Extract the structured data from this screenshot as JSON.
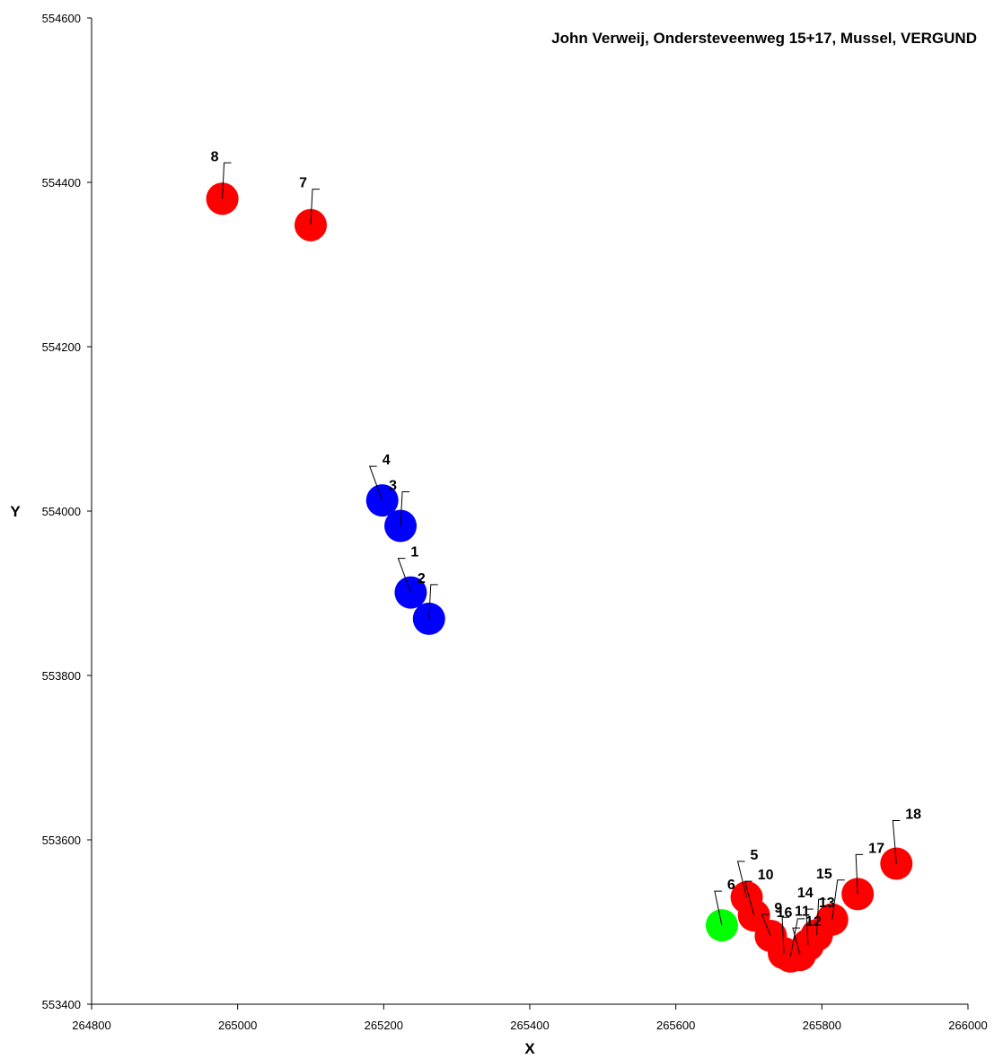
{
  "chart_data": {
    "type": "scatter",
    "title": "John Verweij, Ondersteveenweg 15+17, Mussel, VERGUND",
    "xlabel": "X",
    "ylabel": "Y",
    "xlim": [
      264800,
      266000
    ],
    "ylim": [
      553400,
      554600
    ],
    "xticks": [
      264800,
      265000,
      265200,
      265400,
      265600,
      265800,
      266000
    ],
    "yticks": [
      553400,
      553600,
      553800,
      554000,
      554200,
      554400,
      554600
    ],
    "grid": false,
    "colors": {
      "red": "#ff0000",
      "blue": "#0000ff",
      "green": "#00ff00"
    },
    "points": [
      {
        "label": "1",
        "x": 265237,
        "y": 553901,
        "color": "blue"
      },
      {
        "label": "2",
        "x": 265262,
        "y": 553869,
        "color": "blue"
      },
      {
        "label": "3",
        "x": 265223,
        "y": 553982,
        "color": "blue"
      },
      {
        "label": "4",
        "x": 265198,
        "y": 554013,
        "color": "blue"
      },
      {
        "label": "5",
        "x": 265697,
        "y": 553530,
        "color": "red"
      },
      {
        "label": "6",
        "x": 265663,
        "y": 553496,
        "color": "green"
      },
      {
        "label": "7",
        "x": 265100,
        "y": 554348,
        "color": "red"
      },
      {
        "label": "8",
        "x": 264979,
        "y": 554380,
        "color": "red"
      },
      {
        "label": "9",
        "x": 265730,
        "y": 553483,
        "color": "red"
      },
      {
        "label": "10",
        "x": 265707,
        "y": 553508,
        "color": "red"
      },
      {
        "label": "11",
        "x": 265748,
        "y": 553462,
        "color": "red"
      },
      {
        "label": "12",
        "x": 265770,
        "y": 553460,
        "color": "red"
      },
      {
        "label": "13",
        "x": 265781,
        "y": 553472,
        "color": "red"
      },
      {
        "label": "14",
        "x": 265793,
        "y": 553484,
        "color": "red"
      },
      {
        "label": "15",
        "x": 265814,
        "y": 553503,
        "color": "red"
      },
      {
        "label": "16",
        "x": 265757,
        "y": 553458,
        "color": "red"
      },
      {
        "label": "17",
        "x": 265849,
        "y": 553534,
        "color": "red"
      },
      {
        "label": "18",
        "x": 265902,
        "y": 553571,
        "color": "red"
      }
    ]
  }
}
